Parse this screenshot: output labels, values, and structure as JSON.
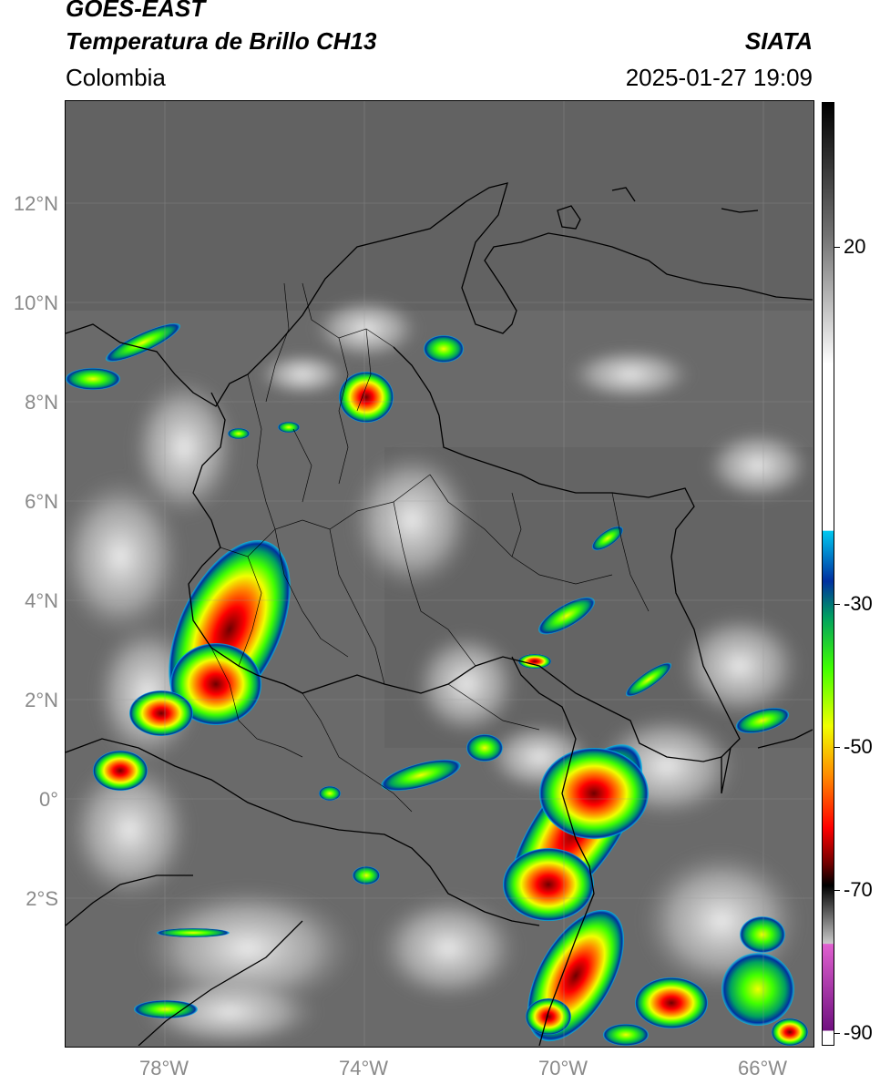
{
  "header": {
    "satellite": "GOES-EAST",
    "product": "Temperatura de Brillo CH13",
    "region": "Colombia",
    "agency": "SIATA",
    "datetime": "2025-01-27 19:09"
  },
  "map": {
    "lat_labels": [
      "12°N",
      "10°N",
      "8°N",
      "6°N",
      "4°N",
      "2°N",
      "0°",
      "2°S"
    ],
    "lon_labels": [
      "78°W",
      "74°W",
      "70°W",
      "66°W"
    ],
    "extent": {
      "lon_min": -79.9,
      "lon_max": -64.9,
      "lat_min": -4.9,
      "lat_max": 14.1
    },
    "base_color": "#6b6b6b",
    "grid": "on"
  },
  "colorbar": {
    "labels": [
      "20",
      "-30",
      "-50",
      "-70",
      "-90"
    ],
    "range": [
      -92,
      38
    ],
    "stops": [
      {
        "v": 38,
        "c": "#000000"
      },
      {
        "v": 20,
        "c": "#707070"
      },
      {
        "v": 2,
        "c": "#ffffff"
      },
      {
        "v": -21,
        "c": "#ffffff"
      },
      {
        "v": -21.1,
        "c": "#00c8f0"
      },
      {
        "v": -28,
        "c": "#0030a0"
      },
      {
        "v": -33,
        "c": "#00a060"
      },
      {
        "v": -40,
        "c": "#40ff00"
      },
      {
        "v": -48,
        "c": "#f0ff00"
      },
      {
        "v": -55,
        "c": "#ff8800"
      },
      {
        "v": -62,
        "c": "#ff0000"
      },
      {
        "v": -67,
        "c": "#700000"
      },
      {
        "v": -70,
        "c": "#000000"
      },
      {
        "v": -78,
        "c": "#c8c8c8"
      },
      {
        "v": -78.1,
        "c": "#e060d0"
      },
      {
        "v": -90,
        "c": "#701080"
      },
      {
        "v": -90.1,
        "c": "#ffffff"
      }
    ]
  }
}
